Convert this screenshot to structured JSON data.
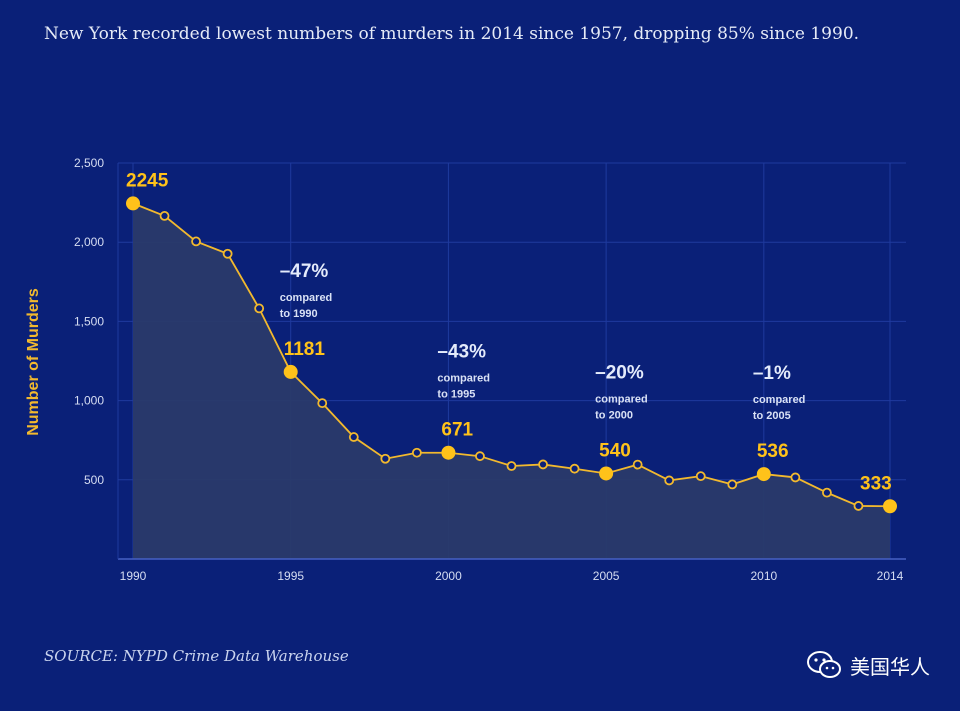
{
  "headline": "New York recorded lowest numbers of murders in 2014 since 1957, dropping 85% since 1990.",
  "source": "SOURCE: NYPD Crime Data Warehouse",
  "brand": {
    "label": "美国华人",
    "icon": "wechat-icon"
  },
  "colors": {
    "background": "#0a2078",
    "line": "#f2b92e",
    "highlight_point": "#ffc21a",
    "area": "#2a3a6a",
    "grid": "#1f3a9e",
    "axis": "#4660c4"
  },
  "chart_data": {
    "type": "area",
    "title": "",
    "xlabel": "",
    "ylabel": "Number of Murders",
    "xlim": [
      1990,
      2014
    ],
    "ylim": [
      0,
      2500
    ],
    "x_ticks": [
      1990,
      1995,
      2000,
      2005,
      2010,
      2014
    ],
    "y_ticks": [
      500,
      1000,
      1500,
      2000,
      2500
    ],
    "y_tick_labels": [
      "500",
      "1,000",
      "1,500",
      "2,000",
      "2,500"
    ],
    "grid": true,
    "x": [
      1990,
      1991,
      1992,
      1993,
      1994,
      1995,
      1996,
      1997,
      1998,
      1999,
      2000,
      2001,
      2002,
      2003,
      2004,
      2005,
      2006,
      2007,
      2008,
      2009,
      2010,
      2011,
      2012,
      2013,
      2014
    ],
    "values": [
      2245,
      2166,
      2005,
      1927,
      1582,
      1181,
      984,
      770,
      633,
      671,
      671,
      649,
      587,
      597,
      570,
      540,
      596,
      496,
      523,
      471,
      536,
      515,
      419,
      335,
      333
    ],
    "highlighted": [
      {
        "x": 1990,
        "label": "2245"
      },
      {
        "x": 1995,
        "label": "1181",
        "change": "–47%",
        "compared_line1": "compared",
        "compared_line2": "to 1990"
      },
      {
        "x": 2000,
        "label": "671",
        "change": "–43%",
        "compared_line1": "compared",
        "compared_line2": "to 1995"
      },
      {
        "x": 2005,
        "label": "540",
        "change": "–20%",
        "compared_line1": "compared",
        "compared_line2": "to 2000"
      },
      {
        "x": 2010,
        "label": "536",
        "change": "–1%",
        "compared_line1": "compared",
        "compared_line2": "to 2005"
      },
      {
        "x": 2014,
        "label": "333"
      }
    ]
  }
}
